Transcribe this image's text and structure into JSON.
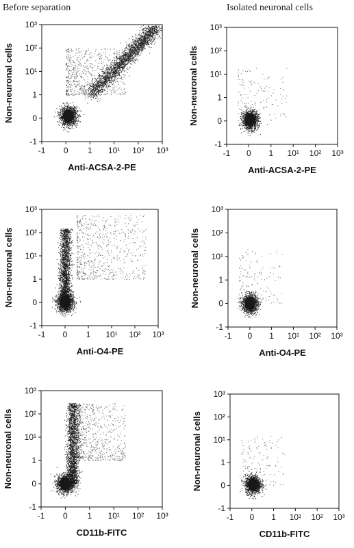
{
  "column_titles": {
    "left": "Before separation",
    "right": "Isolated neuronal cells"
  },
  "chart_data": [
    {
      "type": "scatter",
      "panel": "before-acsa2",
      "column": "Before separation",
      "xlabel": "Anti-ACSA-2-PE",
      "ylabel": "Non-neuronal cells",
      "title": "",
      "xticks": [
        "-1",
        "0",
        "1",
        "10¹",
        "10²",
        "10³"
      ],
      "yticks": [
        "-1",
        "0",
        "1",
        "10¹",
        "10²",
        "10³"
      ],
      "xlim": [
        -1,
        1000
      ],
      "ylim": [
        -1,
        1000
      ],
      "scale": "biexponential (linear -1..1, log 1..1000)",
      "series": [
        {
          "role": "dense population",
          "center": {
            "x": 0.1,
            "y": 0.1
          },
          "relative_density": "high"
        },
        {
          "role": "diagonal population",
          "from": {
            "x": 1,
            "y": 1
          },
          "to": {
            "x": 600,
            "y": 900
          },
          "relative_density": "high"
        },
        {
          "role": "scattered events",
          "x_range": [
            0,
            30
          ],
          "y_range": [
            1,
            100
          ],
          "relative_density": "medium"
        }
      ]
    },
    {
      "type": "scatter",
      "panel": "isolated-acsa2",
      "column": "Isolated neuronal cells",
      "xlabel": "Anti-ACSA-2-PE",
      "ylabel": "Non-neuronal cells",
      "title": "",
      "xticks": [
        "-1",
        "0",
        "1",
        "10¹",
        "10²",
        "10³"
      ],
      "yticks": [
        "-1",
        "0",
        "1",
        "10¹",
        "10²",
        "10³"
      ],
      "xlim": [
        -1,
        1000
      ],
      "ylim": [
        -1,
        1000
      ],
      "scale": "biexponential (linear -1..1, log 1..1000)",
      "series": [
        {
          "role": "dense population",
          "center": {
            "x": 0.05,
            "y": 0.05
          },
          "relative_density": "high"
        },
        {
          "role": "scattered events",
          "x_range": [
            -0.5,
            5
          ],
          "y_range": [
            0,
            20
          ],
          "relative_density": "low"
        }
      ]
    },
    {
      "type": "scatter",
      "panel": "before-o4",
      "column": "Before separation",
      "xlabel": "Anti-O4-PE",
      "ylabel": "Non-neuronal cells",
      "title": "",
      "xticks": [
        "-1",
        "0",
        "1",
        "10¹",
        "10²",
        "10³"
      ],
      "yticks": [
        "-1",
        "0",
        "1",
        "10¹",
        "10²",
        "10³"
      ],
      "xlim": [
        -1,
        1000
      ],
      "ylim": [
        -1,
        1000
      ],
      "scale": "biexponential (linear -1..1, log 1..1000)",
      "series": [
        {
          "role": "dense population",
          "center": {
            "x": 0.0,
            "y": 0.0
          },
          "relative_density": "high"
        },
        {
          "role": "vertical band",
          "x": 0.0,
          "y_range": [
            0,
            150
          ],
          "relative_density": "high"
        },
        {
          "role": "scattered events",
          "x_range": [
            0.5,
            300
          ],
          "y_range": [
            1,
            600
          ],
          "relative_density": "medium"
        }
      ]
    },
    {
      "type": "scatter",
      "panel": "isolated-o4",
      "column": "Isolated neuronal cells",
      "xlabel": "Anti-O4-PE",
      "ylabel": "Non-neuronal cells",
      "title": "",
      "xticks": [
        "-1",
        "0",
        "1",
        "10¹",
        "10²",
        "10³"
      ],
      "yticks": [
        "-1",
        "0",
        "1",
        "10¹",
        "10²",
        "10³"
      ],
      "xlim": [
        -1,
        1000
      ],
      "ylim": [
        -1,
        1000
      ],
      "scale": "biexponential (linear -1..1, log 1..1000)",
      "series": [
        {
          "role": "dense population",
          "center": {
            "x": 0.0,
            "y": 0.0
          },
          "relative_density": "high"
        },
        {
          "role": "scattered events",
          "x_range": [
            -0.5,
            3
          ],
          "y_range": [
            0,
            20
          ],
          "relative_density": "low"
        }
      ]
    },
    {
      "type": "scatter",
      "panel": "before-cd11b",
      "column": "Before separation",
      "xlabel": "CD11b-FITC",
      "ylabel": "Non-neuronal cells",
      "title": "",
      "xticks": [
        "-1",
        "0",
        "1",
        "10¹",
        "10²",
        "10³"
      ],
      "yticks": [
        "-1",
        "0",
        "1",
        "10¹",
        "10²",
        "10³"
      ],
      "xlim": [
        -1,
        1000
      ],
      "ylim": [
        -1,
        1000
      ],
      "scale": "biexponential (linear -1..1, log 1..1000)",
      "series": [
        {
          "role": "dense population",
          "center": {
            "x": 0.0,
            "y": 0.0
          },
          "relative_density": "high"
        },
        {
          "role": "vertical band",
          "x": 0.3,
          "y_range": [
            0,
            300
          ],
          "relative_density": "high"
        },
        {
          "role": "scattered events",
          "x_range": [
            0.5,
            30
          ],
          "y_range": [
            1,
            300
          ],
          "relative_density": "medium"
        }
      ]
    },
    {
      "type": "scatter",
      "panel": "isolated-cd11b",
      "column": "Isolated neuronal cells",
      "xlabel": "CD11b-FITC",
      "ylabel": "Non-neuronal cells",
      "title": "",
      "xticks": [
        "-1",
        "0",
        "1",
        "10¹",
        "10²",
        "10³"
      ],
      "yticks": [
        "-1",
        "0",
        "1",
        "10¹",
        "10²",
        "10³"
      ],
      "xlim": [
        -1,
        1000
      ],
      "ylim": [
        -1,
        1000
      ],
      "scale": "biexponential (linear -1..1, log 1..1000)",
      "series": [
        {
          "role": "dense population",
          "center": {
            "x": 0.05,
            "y": 0.05
          },
          "relative_density": "high"
        },
        {
          "role": "scattered events",
          "x_range": [
            -0.5,
            3
          ],
          "y_range": [
            0,
            15
          ],
          "relative_density": "low"
        }
      ]
    }
  ]
}
